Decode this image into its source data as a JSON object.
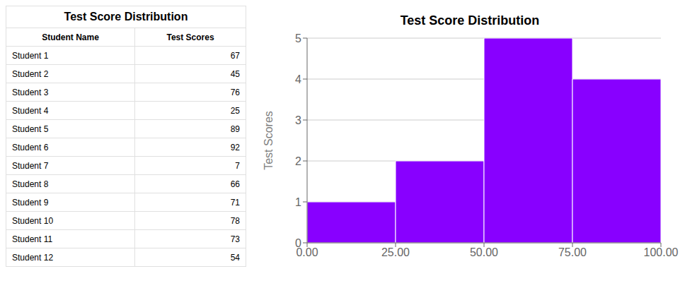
{
  "chart_data": [
    {
      "type": "table",
      "title": "Test Score Distribution",
      "columns": [
        "Student Name",
        "Test Scores"
      ],
      "categories": [
        "Student 1",
        "Student 2",
        "Student 3",
        "Student 4",
        "Student 5",
        "Student 6",
        "Student 7",
        "Student 8",
        "Student 9",
        "Student 10",
        "Student 11",
        "Student 12"
      ],
      "values": [
        67,
        45,
        76,
        25,
        89,
        92,
        7,
        66,
        71,
        78,
        73,
        54
      ]
    },
    {
      "type": "histogram",
      "title": "Test Score Distribution",
      "ylabel": "Test Scores",
      "bins": [
        0,
        25,
        50,
        75,
        100
      ],
      "values": [
        1,
        2,
        5,
        4
      ],
      "color": "#8800ff",
      "xlim": [
        0,
        100
      ],
      "xticks": [
        {
          "value": 0,
          "label": "0.00"
        },
        {
          "value": 25,
          "label": "25.00"
        },
        {
          "value": 50,
          "label": "50.00"
        },
        {
          "value": 75,
          "label": "75.00"
        },
        {
          "value": 100,
          "label": "100.00"
        }
      ],
      "ylim": [
        0,
        5
      ],
      "yticks": [
        0,
        1,
        2,
        3,
        4,
        5
      ],
      "grid": true
    }
  ]
}
